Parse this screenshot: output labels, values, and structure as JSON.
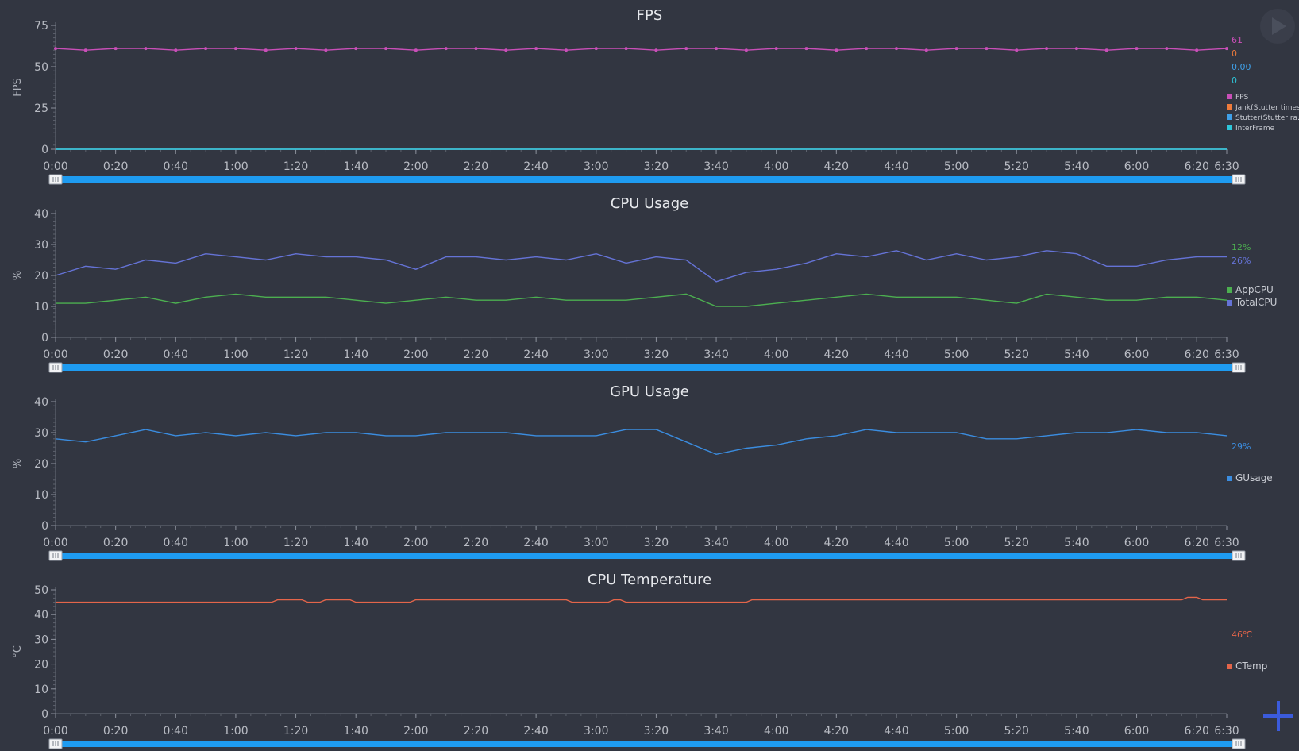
{
  "x_ticks": [
    "0:00",
    "0:20",
    "0:40",
    "1:00",
    "1:20",
    "1:40",
    "2:00",
    "2:20",
    "2:40",
    "3:00",
    "3:20",
    "3:40",
    "4:00",
    "4:20",
    "4:40",
    "5:00",
    "5:20",
    "5:40",
    "6:00",
    "6:20",
    "6:30"
  ],
  "controls": {
    "play_icon": "play-icon",
    "add_icon": "plus-icon",
    "accent_color": "#3b5bdb"
  },
  "chart_data": [
    {
      "type": "line",
      "title": "FPS",
      "ylabel": "FPS",
      "ylim": [
        0,
        75
      ],
      "yticks": [
        0,
        25,
        50,
        75
      ],
      "xlim": [
        0,
        390
      ],
      "zoom_slider": [
        0,
        1
      ],
      "series": [
        {
          "name": "FPS",
          "color": "#c94fb8",
          "marker": true,
          "current": "61",
          "points": [
            [
              0,
              61
            ],
            [
              10,
              60
            ],
            [
              20,
              61
            ],
            [
              30,
              61
            ],
            [
              40,
              60
            ],
            [
              50,
              61
            ],
            [
              60,
              61
            ],
            [
              70,
              60
            ],
            [
              80,
              61
            ],
            [
              90,
              60
            ],
            [
              100,
              61
            ],
            [
              110,
              61
            ],
            [
              120,
              60
            ],
            [
              130,
              61
            ],
            [
              140,
              61
            ],
            [
              150,
              60
            ],
            [
              160,
              61
            ],
            [
              170,
              60
            ],
            [
              180,
              61
            ],
            [
              190,
              61
            ],
            [
              200,
              60
            ],
            [
              210,
              61
            ],
            [
              220,
              61
            ],
            [
              230,
              60
            ],
            [
              240,
              61
            ],
            [
              250,
              61
            ],
            [
              260,
              60
            ],
            [
              270,
              61
            ],
            [
              280,
              61
            ],
            [
              290,
              60
            ],
            [
              300,
              61
            ],
            [
              310,
              61
            ],
            [
              320,
              60
            ],
            [
              330,
              61
            ],
            [
              340,
              61
            ],
            [
              350,
              60
            ],
            [
              360,
              61
            ],
            [
              370,
              61
            ],
            [
              380,
              60
            ],
            [
              390,
              61
            ]
          ]
        },
        {
          "name": "Jank(Stutter times)",
          "color": "#ee7b3b",
          "marker": false,
          "current": "0",
          "points": [
            [
              0,
              0
            ],
            [
              390,
              0
            ]
          ]
        },
        {
          "name": "Stutter(Stutter ra...",
          "color": "#3fa0e8",
          "marker": false,
          "current": "0.00",
          "points": [
            [
              0,
              0
            ],
            [
              390,
              0
            ]
          ]
        },
        {
          "name": "InterFrame",
          "color": "#2ec6d9",
          "marker": false,
          "current": "0",
          "points": [
            [
              0,
              0
            ],
            [
              390,
              0
            ]
          ]
        }
      ]
    },
    {
      "type": "line",
      "title": "CPU Usage",
      "ylabel": "%",
      "ylim": [
        0,
        40
      ],
      "yticks": [
        0,
        10,
        20,
        30,
        40
      ],
      "xlim": [
        0,
        390
      ],
      "zoom_slider": [
        0,
        1
      ],
      "series": [
        {
          "name": "AppCPU",
          "color": "#4caf50",
          "marker": false,
          "current": "12%",
          "points": [
            [
              0,
              11
            ],
            [
              10,
              11
            ],
            [
              20,
              12
            ],
            [
              30,
              13
            ],
            [
              40,
              11
            ],
            [
              50,
              13
            ],
            [
              60,
              14
            ],
            [
              70,
              13
            ],
            [
              80,
              13
            ],
            [
              90,
              13
            ],
            [
              100,
              12
            ],
            [
              110,
              11
            ],
            [
              120,
              12
            ],
            [
              130,
              13
            ],
            [
              140,
              12
            ],
            [
              150,
              12
            ],
            [
              160,
              13
            ],
            [
              170,
              12
            ],
            [
              180,
              12
            ],
            [
              190,
              12
            ],
            [
              200,
              13
            ],
            [
              210,
              14
            ],
            [
              220,
              10
            ],
            [
              230,
              10
            ],
            [
              240,
              11
            ],
            [
              250,
              12
            ],
            [
              260,
              13
            ],
            [
              270,
              14
            ],
            [
              280,
              13
            ],
            [
              290,
              13
            ],
            [
              300,
              13
            ],
            [
              310,
              12
            ],
            [
              320,
              11
            ],
            [
              330,
              14
            ],
            [
              340,
              13
            ],
            [
              350,
              12
            ],
            [
              360,
              12
            ],
            [
              370,
              13
            ],
            [
              380,
              13
            ],
            [
              390,
              12
            ]
          ]
        },
        {
          "name": "TotalCPU",
          "color": "#6573d6",
          "marker": false,
          "current": "26%",
          "points": [
            [
              0,
              20
            ],
            [
              10,
              23
            ],
            [
              20,
              22
            ],
            [
              30,
              25
            ],
            [
              40,
              24
            ],
            [
              50,
              27
            ],
            [
              60,
              26
            ],
            [
              70,
              25
            ],
            [
              80,
              27
            ],
            [
              90,
              26
            ],
            [
              100,
              26
            ],
            [
              110,
              25
            ],
            [
              120,
              22
            ],
            [
              130,
              26
            ],
            [
              140,
              26
            ],
            [
              150,
              25
            ],
            [
              160,
              26
            ],
            [
              170,
              25
            ],
            [
              180,
              27
            ],
            [
              190,
              24
            ],
            [
              200,
              26
            ],
            [
              210,
              25
            ],
            [
              220,
              18
            ],
            [
              230,
              21
            ],
            [
              240,
              22
            ],
            [
              250,
              24
            ],
            [
              260,
              27
            ],
            [
              270,
              26
            ],
            [
              280,
              28
            ],
            [
              290,
              25
            ],
            [
              300,
              27
            ],
            [
              310,
              25
            ],
            [
              320,
              26
            ],
            [
              330,
              28
            ],
            [
              340,
              27
            ],
            [
              350,
              23
            ],
            [
              360,
              23
            ],
            [
              370,
              25
            ],
            [
              380,
              26
            ],
            [
              390,
              26
            ]
          ]
        }
      ]
    },
    {
      "type": "line",
      "title": "GPU Usage",
      "ylabel": "%",
      "ylim": [
        0,
        40
      ],
      "yticks": [
        0,
        10,
        20,
        30,
        40
      ],
      "xlim": [
        0,
        390
      ],
      "zoom_slider": [
        0,
        1
      ],
      "series": [
        {
          "name": "GUsage",
          "color": "#3b8de0",
          "marker": false,
          "current": "29%",
          "points": [
            [
              0,
              28
            ],
            [
              10,
              27
            ],
            [
              20,
              29
            ],
            [
              30,
              31
            ],
            [
              40,
              29
            ],
            [
              50,
              30
            ],
            [
              60,
              29
            ],
            [
              70,
              30
            ],
            [
              80,
              29
            ],
            [
              90,
              30
            ],
            [
              100,
              30
            ],
            [
              110,
              29
            ],
            [
              120,
              29
            ],
            [
              130,
              30
            ],
            [
              140,
              30
            ],
            [
              150,
              30
            ],
            [
              160,
              29
            ],
            [
              170,
              29
            ],
            [
              180,
              29
            ],
            [
              190,
              31
            ],
            [
              200,
              31
            ],
            [
              210,
              27
            ],
            [
              220,
              23
            ],
            [
              230,
              25
            ],
            [
              240,
              26
            ],
            [
              250,
              28
            ],
            [
              260,
              29
            ],
            [
              270,
              31
            ],
            [
              280,
              30
            ],
            [
              290,
              30
            ],
            [
              300,
              30
            ],
            [
              310,
              28
            ],
            [
              320,
              28
            ],
            [
              330,
              29
            ],
            [
              340,
              30
            ],
            [
              350,
              30
            ],
            [
              360,
              31
            ],
            [
              370,
              30
            ],
            [
              380,
              30
            ],
            [
              390,
              29
            ]
          ]
        }
      ]
    },
    {
      "type": "line",
      "title": "CPU Temperature",
      "ylabel": "°C",
      "ylim": [
        0,
        50
      ],
      "yticks": [
        0,
        10,
        20,
        30,
        40,
        50
      ],
      "xlim": [
        0,
        390
      ],
      "zoom_slider": [
        0,
        1
      ],
      "series": [
        {
          "name": "CTemp",
          "color": "#e4654a",
          "marker": false,
          "current": "46℃",
          "points": [
            [
              0,
              45
            ],
            [
              72,
              45
            ],
            [
              74,
              46
            ],
            [
              82,
              46
            ],
            [
              84,
              45
            ],
            [
              88,
              45
            ],
            [
              90,
              46
            ],
            [
              98,
              46
            ],
            [
              100,
              45
            ],
            [
              118,
              45
            ],
            [
              120,
              46
            ],
            [
              170,
              46
            ],
            [
              172,
              45
            ],
            [
              184,
              45
            ],
            [
              186,
              46
            ],
            [
              188,
              46
            ],
            [
              190,
              45
            ],
            [
              230,
              45
            ],
            [
              232,
              46
            ],
            [
              375,
              46
            ],
            [
              377,
              47
            ],
            [
              380,
              47
            ],
            [
              382,
              46
            ],
            [
              390,
              46
            ]
          ]
        }
      ]
    }
  ]
}
